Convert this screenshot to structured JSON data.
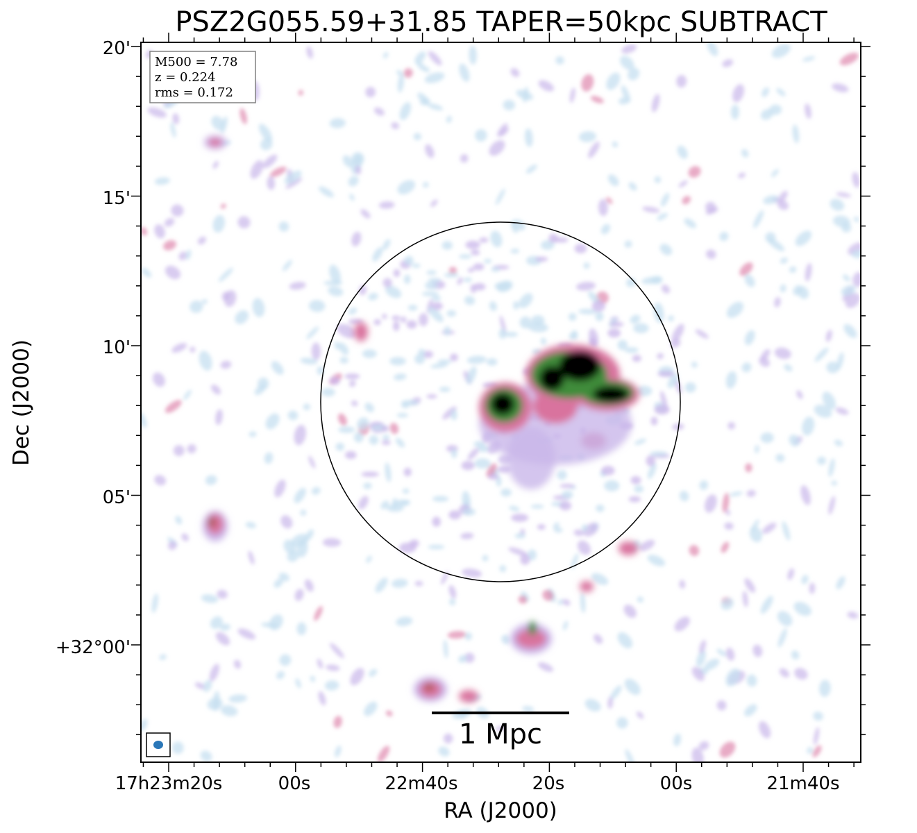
{
  "title": "PSZ2G055.59+31.85 TAPER=50kpc SUBTRACT",
  "axes": {
    "xlabel": "RA (J2000)",
    "ylabel": "Dec (J2000)",
    "x_ticks": [
      "17h23m20s",
      "00s",
      "22m40s",
      "20s",
      "00s",
      "21m40s"
    ],
    "y_ticks": [
      "20'",
      "15'",
      "10'",
      "05'",
      "+32°00'"
    ]
  },
  "info_box": {
    "m500": "M500 = 7.78",
    "z": "z = 0.224",
    "rms": "rms = 0.172"
  },
  "scale_bar": {
    "label": "1 Mpc"
  },
  "colors": {
    "faint": "#c6dff0",
    "lavender": "#c9b6ea",
    "pink": "#d9739e",
    "rose": "#b05a5a",
    "green": "#3f8c3a",
    "core": "#000000",
    "beam": "#2a77b8"
  }
}
